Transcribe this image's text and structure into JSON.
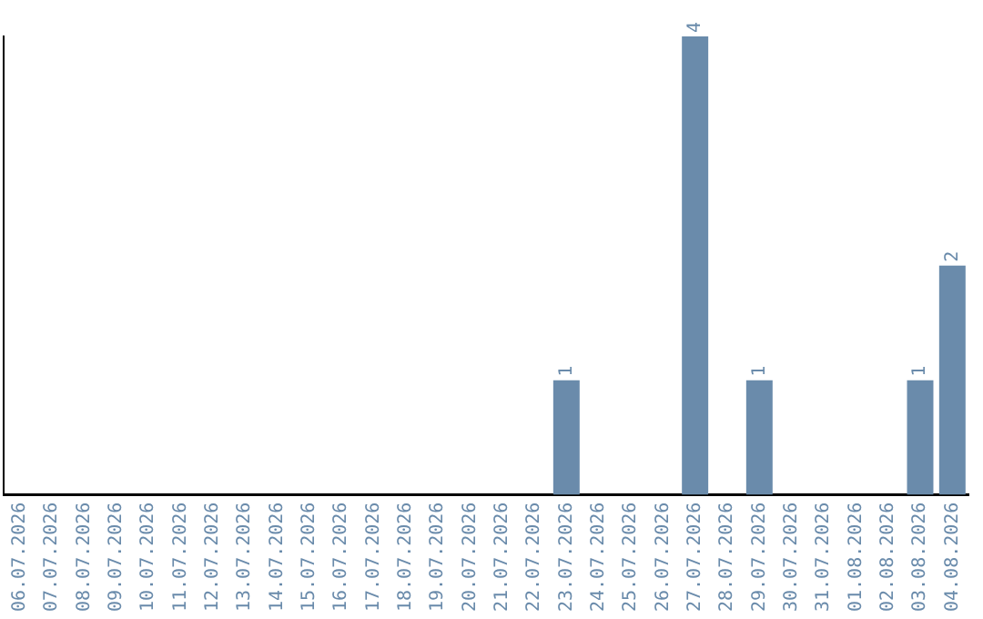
{
  "chart_data": {
    "type": "bar",
    "categories": [
      "06.07.2026",
      "07.07.2026",
      "08.07.2026",
      "09.07.2026",
      "10.07.2026",
      "11.07.2026",
      "12.07.2026",
      "13.07.2026",
      "14.07.2026",
      "15.07.2026",
      "16.07.2026",
      "17.07.2026",
      "18.07.2026",
      "19.07.2026",
      "20.07.2026",
      "21.07.2026",
      "22.07.2026",
      "23.07.2026",
      "24.07.2026",
      "25.07.2026",
      "26.07.2026",
      "27.07.2026",
      "28.07.2026",
      "29.07.2026",
      "30.07.2026",
      "31.07.2026",
      "01.08.2026",
      "02.08.2026",
      "03.08.2026",
      "04.08.2026"
    ],
    "values": [
      null,
      null,
      null,
      null,
      null,
      null,
      null,
      null,
      null,
      null,
      null,
      null,
      null,
      null,
      null,
      null,
      null,
      1,
      null,
      null,
      null,
      4,
      null,
      1,
      null,
      null,
      null,
      null,
      1,
      2
    ],
    "value_labels": [
      null,
      null,
      null,
      null,
      null,
      null,
      null,
      null,
      null,
      null,
      null,
      null,
      null,
      null,
      null,
      null,
      null,
      "1",
      null,
      null,
      null,
      "4",
      null,
      "1",
      null,
      null,
      null,
      null,
      "1",
      "2"
    ],
    "color": "#6a8bab",
    "grid": false,
    "legend": false,
    "tick_labels": "x"
  }
}
